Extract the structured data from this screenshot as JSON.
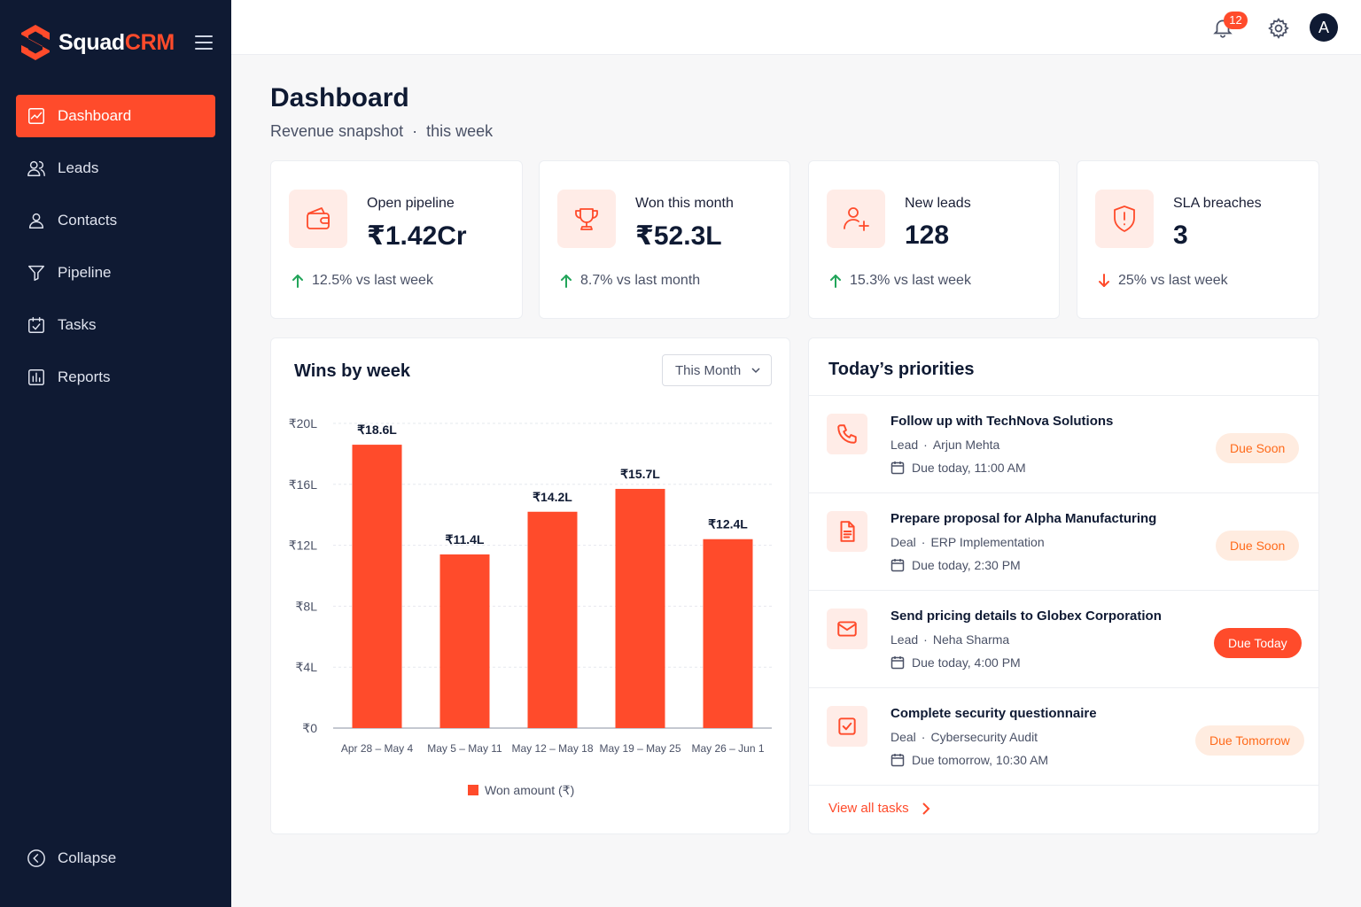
{
  "colors": {
    "accent": "#ff4b2b",
    "sidebar_bg": "#0f1a33",
    "positive": "#22a55a",
    "negative": "#ff4b2b"
  },
  "brand": {
    "name_part1": "Squad",
    "name_part2": "CRM"
  },
  "sidebar": {
    "items": [
      {
        "label": "Dashboard",
        "icon": "dashboard-chart-icon",
        "active": true
      },
      {
        "label": "Leads",
        "icon": "users-icon"
      },
      {
        "label": "Contacts",
        "icon": "contacts-icon"
      },
      {
        "label": "Pipeline",
        "icon": "filter-icon"
      },
      {
        "label": "Tasks",
        "icon": "calendar-check-icon"
      },
      {
        "label": "Reports",
        "icon": "report-icon"
      }
    ],
    "collapse_label": "Collapse"
  },
  "topbar": {
    "notification_count": "12",
    "avatar_initial": "A"
  },
  "header": {
    "title": "Dashboard",
    "subtitle_main": "Revenue snapshot",
    "subtitle_sep": "·",
    "subtitle_period": "this week"
  },
  "stats": [
    {
      "label": "Open pipeline",
      "value": "₹1.42Cr",
      "delta": "12.5% vs last week",
      "direction": "up",
      "icon": "wallet-icon"
    },
    {
      "label": "Won this month",
      "value": "₹52.3L",
      "delta": "8.7% vs last month",
      "direction": "up",
      "icon": "trophy-icon"
    },
    {
      "label": "New leads",
      "value": "128",
      "delta": "15.3% vs last week",
      "direction": "up",
      "icon": "user-plus-icon"
    },
    {
      "label": "SLA breaches",
      "value": "3",
      "delta": "25% vs last week",
      "direction": "down",
      "icon": "shield-alert-icon"
    }
  ],
  "chart_card": {
    "title": "Wins by week",
    "dropdown_value": "This Month"
  },
  "chart_data": {
    "type": "bar",
    "title": "Wins by week",
    "categories": [
      "Apr 28 – May 4",
      "May 5 – May 11",
      "May 12 – May 18",
      "May 19 – May 25",
      "May 26 – Jun 1"
    ],
    "series": [
      {
        "name": "Won amount (₹)",
        "values": [
          18.6,
          11.4,
          14.2,
          15.7,
          12.4
        ]
      }
    ],
    "data_labels": [
      "₹18.6L",
      "₹11.4L",
      "₹14.2L",
      "₹15.7L",
      "₹12.4L"
    ],
    "y_ticks": [
      "₹0",
      "₹4L",
      "₹8L",
      "₹12L",
      "₹16L",
      "₹20L"
    ],
    "ylim": [
      0,
      20
    ],
    "grid": true,
    "legend_position": "bottom",
    "color": "#ff4b2b"
  },
  "priorities": {
    "title": "Today’s priorities",
    "tasks": [
      {
        "title": "Follow up with TechNova Solutions",
        "type": "Lead",
        "sep": "·",
        "ref": "Arjun Mehta",
        "due": "Due today, 11:00 AM",
        "status": "Due Soon",
        "icon": "phone-icon"
      },
      {
        "title": "Prepare proposal for Alpha Manufacturing",
        "type": "Deal",
        "sep": "·",
        "ref": "ERP Implementation",
        "due": "Due today, 2:30 PM",
        "status": "Due Soon",
        "icon": "document-icon"
      },
      {
        "title": "Send pricing details to Globex Corporation",
        "type": "Lead",
        "sep": "·",
        "ref": "Neha Sharma",
        "due": "Due today, 4:00 PM",
        "status": "Due Today",
        "icon": "mail-icon"
      },
      {
        "title": "Complete security questionnaire",
        "type": "Deal",
        "sep": "·",
        "ref": "Cybersecurity Audit",
        "due": "Due tomorrow, 10:30 AM",
        "status": "Due Tomorrow",
        "icon": "checkbox-icon"
      }
    ],
    "view_all": "View all tasks"
  }
}
